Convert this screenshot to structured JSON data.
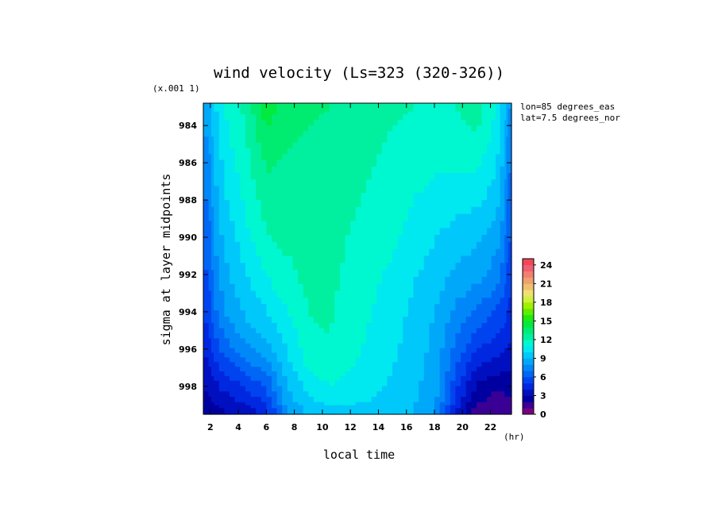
{
  "chart_data": {
    "type": "heatmap",
    "title": "wind velocity (Ls=323 (320-326))",
    "multiplier_label": "(x.001 1)",
    "xlabel": "local time",
    "x_unit": "(hr)",
    "ylabel": "sigma at layer midpoints",
    "annotations": [
      "lon=85 degrees_eas",
      "lat=7.5 degrees_nor"
    ],
    "x": [
      1.5,
      3,
      4.5,
      6,
      7.5,
      9,
      10.5,
      12,
      13.5,
      15,
      16.5,
      18,
      19.5,
      21,
      22.5,
      23.5
    ],
    "xlim": [
      1.5,
      23.5
    ],
    "x_ticks": [
      2,
      4,
      6,
      8,
      10,
      12,
      14,
      16,
      18,
      20,
      22
    ],
    "y": [
      982.8,
      984,
      985.2,
      986.5,
      988,
      989.5,
      991,
      992.5,
      994,
      995.2,
      996.2,
      997.2,
      998.2,
      999.5
    ],
    "ylim": [
      999.5,
      982.8
    ],
    "y_ticks": [
      984,
      986,
      988,
      990,
      992,
      994,
      996,
      998
    ],
    "values": [
      [
        8.5,
        11.0,
        12.3,
        14.5,
        13.5,
        13.2,
        13.0,
        12.8,
        12.5,
        12.2,
        12.0,
        11.8,
        12.0,
        12.3,
        11.0,
        8.0
      ],
      [
        8.2,
        10.8,
        12.0,
        14.2,
        13.2,
        13.0,
        12.8,
        12.6,
        12.3,
        12.0,
        11.8,
        11.6,
        11.8,
        12.2,
        10.8,
        7.8
      ],
      [
        7.8,
        10.5,
        11.8,
        13.5,
        13.0,
        12.8,
        12.7,
        12.5,
        12.2,
        11.8,
        11.6,
        11.4,
        11.5,
        11.5,
        10.5,
        7.4
      ],
      [
        7.4,
        10.2,
        11.5,
        13.0,
        12.8,
        12.6,
        12.5,
        12.3,
        12.0,
        11.6,
        11.4,
        11.0,
        11.0,
        11.0,
        10.0,
        7.0
      ],
      [
        7.0,
        9.8,
        11.2,
        12.5,
        12.9,
        12.4,
        12.4,
        12.2,
        11.8,
        11.4,
        11.0,
        10.6,
        10.4,
        10.2,
        9.5,
        6.6
      ],
      [
        6.6,
        9.4,
        10.8,
        12.0,
        12.5,
        12.5,
        12.4,
        12.0,
        11.6,
        11.2,
        10.8,
        10.2,
        9.8,
        9.5,
        8.8,
        6.2
      ],
      [
        6.2,
        9.0,
        10.3,
        11.5,
        12.0,
        12.3,
        12.4,
        11.8,
        11.4,
        11.0,
        10.4,
        9.8,
        9.2,
        8.8,
        8.0,
        5.8
      ],
      [
        5.8,
        8.5,
        9.8,
        10.8,
        11.6,
        12.2,
        12.3,
        11.6,
        11.2,
        10.6,
        10.0,
        9.4,
        8.6,
        8.0,
        7.2,
        5.3
      ],
      [
        5.3,
        8.0,
        9.2,
        10.0,
        11.0,
        12.0,
        12.2,
        11.4,
        11.0,
        10.4,
        9.8,
        9.0,
        7.8,
        6.8,
        6.0,
        4.8
      ],
      [
        4.8,
        7.2,
        8.5,
        9.2,
        10.4,
        11.8,
        12.0,
        11.3,
        10.9,
        10.3,
        9.6,
        8.8,
        7.2,
        5.8,
        5.2,
        4.3
      ],
      [
        4.2,
        6.2,
        7.5,
        8.5,
        10.0,
        11.5,
        11.8,
        11.2,
        10.8,
        10.2,
        9.5,
        8.7,
        6.6,
        4.8,
        4.2,
        3.7
      ],
      [
        3.6,
        5.2,
        6.2,
        7.2,
        9.5,
        11.0,
        11.5,
        11.0,
        10.6,
        10.0,
        9.4,
        8.6,
        6.0,
        3.8,
        3.2,
        3.0
      ],
      [
        3.0,
        4.0,
        4.8,
        5.8,
        8.8,
        10.2,
        10.8,
        10.5,
        10.2,
        9.8,
        9.2,
        8.5,
        5.2,
        2.6,
        2.0,
        2.2
      ],
      [
        2.2,
        3.0,
        3.6,
        4.6,
        8.2,
        9.2,
        9.8,
        9.8,
        9.6,
        9.4,
        9.0,
        8.3,
        4.2,
        1.6,
        1.0,
        1.6
      ]
    ],
    "colorbar": {
      "min": 0,
      "max": 25,
      "ticks": [
        0,
        3,
        6,
        9,
        12,
        15,
        18,
        21,
        24
      ],
      "colors": [
        "#7a0080",
        "#3a0096",
        "#0000a0",
        "#0010c0",
        "#0028e0",
        "#0044f0",
        "#0066f5",
        "#0088f8",
        "#00a8fa",
        "#00c8fa",
        "#00e8f0",
        "#00f8d0",
        "#00f0a0",
        "#00ec70",
        "#00ea40",
        "#20ea10",
        "#60ee00",
        "#a0f000",
        "#d0f040",
        "#f0e070",
        "#f0c070",
        "#f0a070",
        "#f08070",
        "#f06070",
        "#f04858"
      ]
    }
  }
}
